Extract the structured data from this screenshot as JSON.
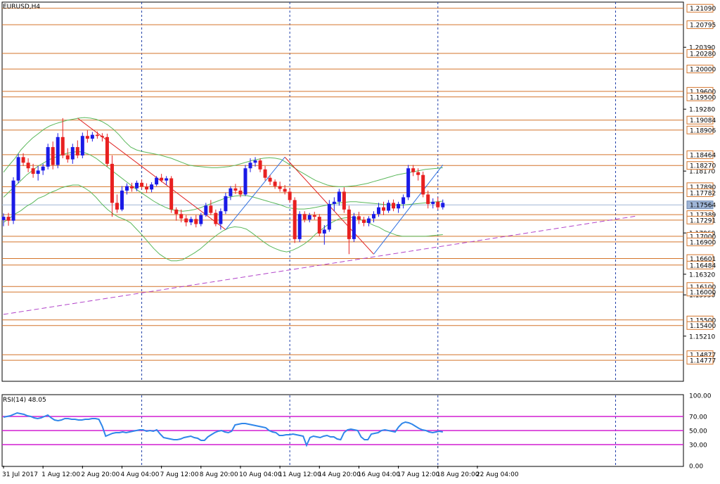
{
  "chart_data": {
    "type": "candlestick",
    "title": "EURUSD,H4",
    "symbol": "EURUSD",
    "timeframe": "H4",
    "price_axis": {
      "min": 1.144,
      "max": 1.212,
      "tick_labels": [
        "1.20390",
        "1.19280",
        "1.18170",
        "1.17060",
        "1.16320",
        "1.15950",
        "1.15210"
      ],
      "tick_values": [
        1.2039,
        1.1928,
        1.1817,
        1.1706,
        1.1632,
        1.1595,
        1.1521
      ]
    },
    "time_axis": {
      "tick_labels": [
        "31 Jul 2017",
        "1 Aug 12:00",
        "2 Aug 20:00",
        "4 Aug 04:00",
        "7 Aug 12:00",
        "8 Aug 20:00",
        "10 Aug 04:00",
        "11 Aug 12:00",
        "14 Aug 20:00",
        "16 Aug 04:00",
        "17 Aug 12:00",
        "18 Aug 20:00",
        "22 Aug 04:00"
      ],
      "tick_positions": [
        0,
        8,
        16,
        24,
        32,
        40,
        48,
        56,
        64,
        72,
        80,
        88,
        96
      ],
      "period_separators": [
        28,
        58,
        88,
        124
      ]
    },
    "price_levels": [
      {
        "label": "1.21090",
        "value": 1.2109
      },
      {
        "label": "1.20795",
        "value": 1.20795
      },
      {
        "label": "1.20280",
        "value": 1.2028
      },
      {
        "label": "1.20000",
        "value": 1.2
      },
      {
        "label": "1.19600",
        "value": 1.196
      },
      {
        "label": "1.19500",
        "value": 1.195
      },
      {
        "label": "1.19084",
        "value": 1.19084
      },
      {
        "label": "1.18906",
        "value": 1.18906
      },
      {
        "label": "1.18464",
        "value": 1.18464
      },
      {
        "label": "1.18270",
        "value": 1.1827
      },
      {
        "label": "1.17890",
        "value": 1.1789
      },
      {
        "label": "1.17782",
        "value": 1.17782
      },
      {
        "label": "1.17389",
        "value": 1.17389
      },
      {
        "label": "1.17291",
        "value": 1.17291
      },
      {
        "label": "1.17000",
        "value": 1.17
      },
      {
        "label": "1.16900",
        "value": 1.169
      },
      {
        "label": "1.16601",
        "value": 1.16601
      },
      {
        "label": "1.16484",
        "value": 1.16484
      },
      {
        "label": "1.16100",
        "value": 1.161
      },
      {
        "label": "1.16000",
        "value": 1.16
      },
      {
        "label": "1.15500",
        "value": 1.155
      },
      {
        "label": "1.15400",
        "value": 1.154
      },
      {
        "label": "1.14877",
        "value": 1.14877
      },
      {
        "label": "1.14777",
        "value": 1.14777
      }
    ],
    "current_price": {
      "label": "1.17564",
      "value": 1.17564
    },
    "candles": [
      [
        1.1729,
        1.1741,
        1.1718,
        1.1735
      ],
      [
        1.1735,
        1.1742,
        1.1719,
        1.1728
      ],
      [
        1.1728,
        1.1806,
        1.1722,
        1.18
      ],
      [
        1.18,
        1.1848,
        1.1795,
        1.1842
      ],
      [
        1.1842,
        1.1849,
        1.1826,
        1.1832
      ],
      [
        1.1832,
        1.184,
        1.1815,
        1.1822
      ],
      [
        1.1822,
        1.183,
        1.1805,
        1.1812
      ],
      [
        1.1812,
        1.1826,
        1.18,
        1.1818
      ],
      [
        1.1818,
        1.183,
        1.181,
        1.1825
      ],
      [
        1.1825,
        1.1866,
        1.182,
        1.186
      ],
      [
        1.186,
        1.187,
        1.182,
        1.1828
      ],
      [
        1.1828,
        1.1885,
        1.1822,
        1.1878
      ],
      [
        1.1878,
        1.1912,
        1.184,
        1.1845
      ],
      [
        1.1845,
        1.1858,
        1.1832,
        1.1838
      ],
      [
        1.1838,
        1.1866,
        1.183,
        1.186
      ],
      [
        1.186,
        1.1872,
        1.184,
        1.1845
      ],
      [
        1.1845,
        1.1886,
        1.184,
        1.188
      ],
      [
        1.188,
        1.189,
        1.1868,
        1.1875
      ],
      [
        1.1875,
        1.1887,
        1.187,
        1.1882
      ],
      [
        1.1882,
        1.1888,
        1.1875,
        1.188
      ],
      [
        1.188,
        1.1885,
        1.187,
        1.1878
      ],
      [
        1.1878,
        1.1884,
        1.1825,
        1.183
      ],
      [
        1.183,
        1.1845,
        1.1735,
        1.176
      ],
      [
        1.176,
        1.1775,
        1.1742,
        1.1748
      ],
      [
        1.1748,
        1.179,
        1.1745,
        1.1782
      ],
      [
        1.1782,
        1.1795,
        1.1775,
        1.179
      ],
      [
        1.179,
        1.1796,
        1.178,
        1.1786
      ],
      [
        1.1786,
        1.18,
        1.1781,
        1.1796
      ],
      [
        1.1796,
        1.1802,
        1.1785,
        1.1789
      ],
      [
        1.1789,
        1.1795,
        1.1778,
        1.1784
      ],
      [
        1.1784,
        1.1797,
        1.1779,
        1.1793
      ],
      [
        1.1793,
        1.1808,
        1.179,
        1.1805
      ],
      [
        1.1805,
        1.1812,
        1.1797,
        1.18
      ],
      [
        1.18,
        1.1808,
        1.1792,
        1.1804
      ],
      [
        1.1804,
        1.1808,
        1.1742,
        1.1748
      ],
      [
        1.1748,
        1.1752,
        1.1728,
        1.174
      ],
      [
        1.174,
        1.1748,
        1.1725,
        1.1732
      ],
      [
        1.1732,
        1.1738,
        1.1718,
        1.1725
      ],
      [
        1.1725,
        1.1735,
        1.172,
        1.1731
      ],
      [
        1.1731,
        1.1738,
        1.1716,
        1.1722
      ],
      [
        1.1722,
        1.1742,
        1.1718,
        1.1738
      ],
      [
        1.1738,
        1.176,
        1.1735,
        1.1755
      ],
      [
        1.1755,
        1.1765,
        1.1738,
        1.1742
      ],
      [
        1.1742,
        1.1748,
        1.1718,
        1.1722
      ],
      [
        1.1722,
        1.175,
        1.1712,
        1.1745
      ],
      [
        1.1745,
        1.1778,
        1.174,
        1.1772
      ],
      [
        1.1772,
        1.179,
        1.1765,
        1.1786
      ],
      [
        1.1786,
        1.1794,
        1.1776,
        1.1782
      ],
      [
        1.1782,
        1.1788,
        1.177,
        1.1775
      ],
      [
        1.1775,
        1.1828,
        1.1772,
        1.1822
      ],
      [
        1.1822,
        1.184,
        1.1815,
        1.1832
      ],
      [
        1.1832,
        1.1842,
        1.1825,
        1.1836
      ],
      [
        1.1836,
        1.184,
        1.1815,
        1.182
      ],
      [
        1.182,
        1.1826,
        1.18,
        1.1805
      ],
      [
        1.1805,
        1.181,
        1.1792,
        1.1798
      ],
      [
        1.1798,
        1.1802,
        1.1785,
        1.179
      ],
      [
        1.179,
        1.1798,
        1.178,
        1.1785
      ],
      [
        1.1785,
        1.1792,
        1.1775,
        1.178
      ],
      [
        1.178,
        1.1786,
        1.176,
        1.1765
      ],
      [
        1.1765,
        1.177,
        1.1688,
        1.1695
      ],
      [
        1.1695,
        1.1745,
        1.169,
        1.174
      ],
      [
        1.174,
        1.1745,
        1.1725,
        1.173
      ],
      [
        1.173,
        1.1742,
        1.1725,
        1.1738
      ],
      [
        1.1738,
        1.1744,
        1.173,
        1.1735
      ],
      [
        1.1735,
        1.174,
        1.17,
        1.1705
      ],
      [
        1.1705,
        1.172,
        1.1685,
        1.1712
      ],
      [
        1.1712,
        1.1765,
        1.1708,
        1.1758
      ],
      [
        1.1758,
        1.177,
        1.1745,
        1.1762
      ],
      [
        1.1762,
        1.1785,
        1.1755,
        1.178
      ],
      [
        1.178,
        1.1788,
        1.1742,
        1.1748
      ],
      [
        1.1748,
        1.1755,
        1.1668,
        1.1695
      ],
      [
        1.1695,
        1.1742,
        1.169,
        1.1736
      ],
      [
        1.1736,
        1.1744,
        1.1722,
        1.173
      ],
      [
        1.173,
        1.1735,
        1.1718,
        1.1724
      ],
      [
        1.1724,
        1.1736,
        1.1718,
        1.1732
      ],
      [
        1.1732,
        1.1745,
        1.1725,
        1.174
      ],
      [
        1.174,
        1.176,
        1.1735,
        1.1752
      ],
      [
        1.1752,
        1.1762,
        1.1738,
        1.1746
      ],
      [
        1.1746,
        1.1765,
        1.1742,
        1.176
      ],
      [
        1.176,
        1.1766,
        1.1745,
        1.175
      ],
      [
        1.175,
        1.1762,
        1.1742,
        1.1758
      ],
      [
        1.1758,
        1.1775,
        1.175,
        1.177
      ],
      [
        1.177,
        1.1828,
        1.1765,
        1.1822
      ],
      [
        1.1822,
        1.1828,
        1.1808,
        1.1815
      ],
      [
        1.1815,
        1.1822,
        1.18,
        1.181
      ],
      [
        1.181,
        1.1816,
        1.177,
        1.1775
      ],
      [
        1.1775,
        1.1782,
        1.175,
        1.1758
      ],
      [
        1.1758,
        1.1768,
        1.175,
        1.1762
      ],
      [
        1.1762,
        1.177,
        1.1748,
        1.1752
      ],
      [
        1.1752,
        1.1766,
        1.1748,
        1.176
      ]
    ],
    "zigzag": [
      [
        15,
        1.1912
      ],
      [
        45,
        1.1712
      ],
      [
        57,
        1.1842
      ],
      [
        75,
        1.1668
      ],
      [
        89,
        1.1828
      ]
    ],
    "bollinger": {
      "upper": [
        1.1815,
        1.1828,
        1.184,
        1.1855,
        1.1866,
        1.1876,
        1.1884,
        1.1892,
        1.1898,
        1.1902,
        1.1905,
        1.1908,
        1.191,
        1.1912,
        1.1913,
        1.1912,
        1.191,
        1.1906,
        1.19,
        1.1892,
        1.1882,
        1.187,
        1.186,
        1.1855,
        1.1852,
        1.185,
        1.1848,
        1.1846,
        1.1843,
        1.184,
        1.1836,
        1.1832,
        1.1828,
        1.1826,
        1.1825,
        1.1824,
        1.1823,
        1.1823,
        1.1824,
        1.1825,
        1.1827,
        1.183,
        1.1833,
        1.1836,
        1.1838,
        1.184,
        1.1841,
        1.184,
        1.1838,
        1.1832,
        1.1825,
        1.1818,
        1.1812,
        1.1806,
        1.18,
        1.1796,
        1.1792,
        1.179,
        1.1789,
        1.1789,
        1.179,
        1.1791,
        1.1793,
        1.1795,
        1.1798,
        1.1801,
        1.1804,
        1.1807,
        1.181,
        1.1812,
        1.1814,
        1.1816,
        1.1818,
        1.182,
        1.1821,
        1.1822,
        1.1823
      ],
      "middle": [
        1.177,
        1.178,
        1.179,
        1.18,
        1.181,
        1.1818,
        1.1826,
        1.1832,
        1.1838,
        1.1842,
        1.1846,
        1.1849,
        1.1851,
        1.1852,
        1.185,
        1.1846,
        1.184,
        1.1832,
        1.1824,
        1.1816,
        1.1808,
        1.18,
        1.1792,
        1.1784,
        1.1777,
        1.177,
        1.1763,
        1.1757,
        1.1752,
        1.1748,
        1.1746,
        1.1745,
        1.1746,
        1.1748,
        1.1751,
        1.1755,
        1.1759,
        1.1763,
        1.1767,
        1.177,
        1.1772,
        1.1773,
        1.1773,
        1.1771,
        1.1768,
        1.1765,
        1.1762,
        1.1759,
        1.1756,
        1.1752,
        1.175,
        1.1749,
        1.1749,
        1.175,
        1.1752,
        1.1754,
        1.1756,
        1.1758,
        1.176,
        1.1761,
        1.1762,
        1.1762,
        1.1761,
        1.176,
        1.1759,
        1.1758,
        1.1757,
        1.1756,
        1.1756,
        1.1756,
        1.1757,
        1.1758,
        1.1759,
        1.176,
        1.1761,
        1.1762,
        1.1763
      ],
      "lower": [
        1.1725,
        1.1732,
        1.174,
        1.1746,
        1.1754,
        1.176,
        1.1768,
        1.1772,
        1.1778,
        1.1782,
        1.1787,
        1.179,
        1.1792,
        1.1792,
        1.1787,
        1.178,
        1.177,
        1.1758,
        1.1748,
        1.174,
        1.1734,
        1.173,
        1.1724,
        1.1713,
        1.1702,
        1.169,
        1.1678,
        1.1668,
        1.1661,
        1.1656,
        1.1656,
        1.1658,
        1.1664,
        1.167,
        1.1677,
        1.1686,
        1.1695,
        1.1703,
        1.171,
        1.1715,
        1.1717,
        1.1716,
        1.1713,
        1.1706,
        1.1698,
        1.169,
        1.1683,
        1.1678,
        1.1674,
        1.1672,
        1.1675,
        1.168,
        1.1686,
        1.1694,
        1.1704,
        1.1712,
        1.172,
        1.1726,
        1.1731,
        1.1733,
        1.1734,
        1.1733,
        1.1729,
        1.1725,
        1.172,
        1.1716,
        1.171,
        1.1706,
        1.1702,
        1.17,
        1.17,
        1.17,
        1.17,
        1.17,
        1.1701,
        1.1702,
        1.1703
      ]
    },
    "trendline": {
      "from": [
        0,
        1.156
      ],
      "to": [
        128,
        1.1736
      ]
    },
    "indicator": {
      "title": "RSI(14) 48.05",
      "name": "RSI(14)",
      "value": "48.05",
      "axis_labels": [
        "100.00",
        "70.00",
        "50.00",
        "30.00",
        "0.00"
      ],
      "levels": [
        70,
        50,
        30
      ],
      "values": [
        69,
        70,
        71,
        73,
        75,
        74,
        73,
        71,
        70,
        68,
        67,
        68,
        70,
        72,
        68,
        65,
        64,
        65,
        67,
        67,
        66,
        66,
        65,
        65,
        66,
        66,
        67,
        67,
        66,
        56,
        42,
        44,
        46,
        47,
        47,
        48,
        47,
        48,
        49,
        50,
        51,
        51,
        49,
        50,
        49,
        51,
        45,
        40,
        39,
        38,
        37,
        37,
        38,
        40,
        41,
        42,
        40,
        39,
        36,
        36,
        41,
        44,
        47,
        49,
        50,
        48,
        47,
        49,
        58,
        59,
        60,
        60,
        59,
        58,
        57,
        56,
        55,
        54,
        50,
        48,
        47,
        43,
        43,
        44,
        44,
        45,
        44,
        43,
        42,
        29,
        40,
        42,
        41,
        40,
        42,
        43,
        41,
        41,
        38,
        37,
        47,
        51,
        52,
        51,
        50,
        41,
        37,
        37,
        45,
        46,
        47,
        50,
        51,
        50,
        49,
        48,
        55,
        60,
        62,
        61,
        59,
        56,
        53,
        51,
        50,
        48,
        47,
        48,
        49,
        48
      ]
    }
  }
}
